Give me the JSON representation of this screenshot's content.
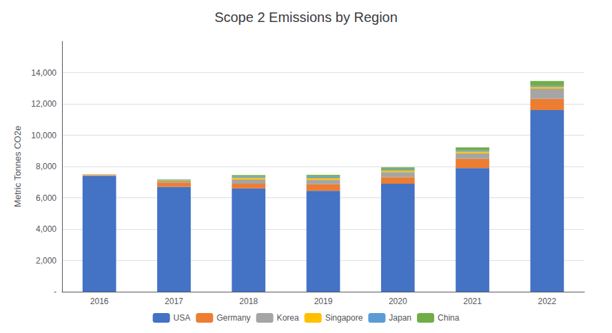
{
  "chart_data": {
    "type": "bar",
    "title": "Scope 2 Emissions by Region",
    "ylabel": "Metric Tonnes CO2e",
    "categories": [
      "2016",
      "2017",
      "2018",
      "2019",
      "2020",
      "2021",
      "2022"
    ],
    "series": [
      {
        "name": "USA",
        "color": "#4472C4",
        "values": [
          7400,
          6700,
          6600,
          6450,
          6900,
          7900,
          11600
        ]
      },
      {
        "name": "Germany",
        "color": "#ED7D31",
        "values": [
          50,
          280,
          300,
          420,
          420,
          600,
          720
        ]
      },
      {
        "name": "Korea",
        "color": "#A5A5A5",
        "values": [
          30,
          100,
          280,
          280,
          320,
          350,
          650
        ]
      },
      {
        "name": "Singapore",
        "color": "#FFC000",
        "values": [
          10,
          40,
          110,
          110,
          110,
          110,
          120
        ]
      },
      {
        "name": "Japan",
        "color": "#5B9BD5",
        "values": [
          10,
          30,
          70,
          90,
          90,
          70,
          90
        ]
      },
      {
        "name": "China",
        "color": "#70AD47",
        "values": [
          10,
          30,
          90,
          110,
          110,
          190,
          280
        ]
      }
    ],
    "stacked": true,
    "ylim": [
      0,
      16000
    ],
    "yticks": [
      {
        "value": 0,
        "label": "-"
      },
      {
        "value": 2000,
        "label": "2,000"
      },
      {
        "value": 4000,
        "label": "4,000"
      },
      {
        "value": 6000,
        "label": "6,000"
      },
      {
        "value": 8000,
        "label": "8,000"
      },
      {
        "value": 10000,
        "label": "10,000"
      },
      {
        "value": 12000,
        "label": "12,000"
      },
      {
        "value": 14000,
        "label": "14,000"
      }
    ],
    "grid": true,
    "legend": "bottom"
  }
}
